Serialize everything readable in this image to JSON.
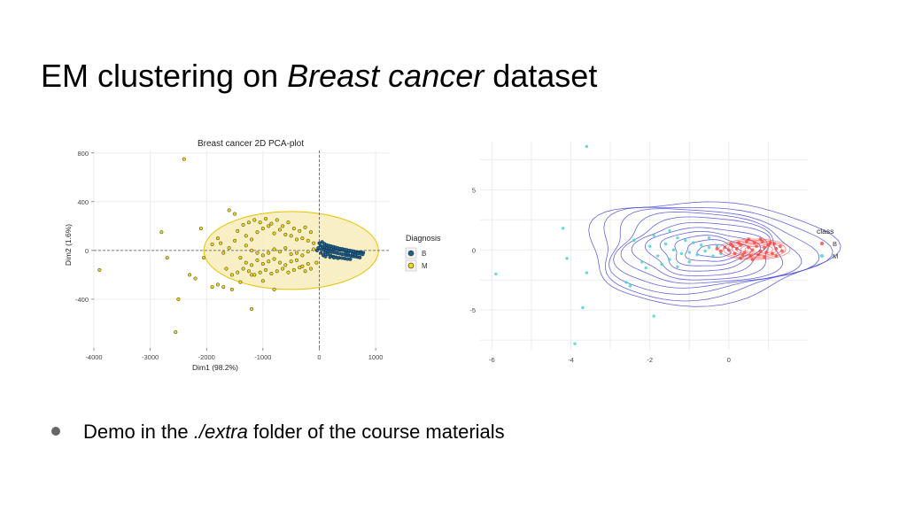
{
  "slide": {
    "title_part1": "EM clustering on ",
    "title_italic": "Breast cancer",
    "title_part2": " dataset",
    "bullet_part1": "Demo in the ",
    "bullet_italic": "./extra",
    "bullet_part2": " folder of the course materials"
  },
  "chart_data": [
    {
      "type": "scatter",
      "title": "Breast cancer 2D PCA-plot",
      "xlabel": "Dim1 (98.2%)",
      "ylabel": "Dim2 (1.6%)",
      "xlim": [
        -4000,
        1250
      ],
      "ylim": [
        -800,
        820
      ],
      "xticks": [
        -4000,
        -3000,
        -2000,
        -1000,
        0,
        1000
      ],
      "yticks": [
        800,
        400,
        0,
        -400
      ],
      "grid": true,
      "legend": {
        "title": "Diagnosis",
        "position": "right"
      },
      "colors": {
        "B": "#1f5f8b",
        "M": "#f2d600",
        "ellipse_fill": "#f7e9b0",
        "ellipse_stroke": "#e6c200"
      },
      "series": [
        {
          "name": "B",
          "points": [
            [
              20,
              40
            ],
            [
              60,
              30
            ],
            [
              100,
              25
            ],
            [
              140,
              20
            ],
            [
              180,
              18
            ],
            [
              220,
              14
            ],
            [
              260,
              12
            ],
            [
              300,
              10
            ],
            [
              340,
              6
            ],
            [
              380,
              4
            ],
            [
              420,
              2
            ],
            [
              460,
              -2
            ],
            [
              500,
              -4
            ],
            [
              540,
              -6
            ],
            [
              580,
              -8
            ],
            [
              620,
              -10
            ],
            [
              660,
              -12
            ],
            [
              700,
              -14
            ],
            [
              740,
              -16
            ],
            [
              780,
              -18
            ],
            [
              40,
              10
            ],
            [
              80,
              5
            ],
            [
              120,
              -2
            ],
            [
              160,
              -6
            ],
            [
              200,
              -10
            ],
            [
              240,
              -14
            ],
            [
              280,
              -18
            ],
            [
              320,
              -22
            ],
            [
              360,
              -26
            ],
            [
              400,
              -30
            ],
            [
              440,
              -34
            ],
            [
              480,
              -38
            ],
            [
              520,
              -40
            ],
            [
              560,
              -44
            ],
            [
              600,
              -48
            ],
            [
              640,
              -50
            ],
            [
              680,
              -54
            ],
            [
              720,
              -58
            ],
            [
              0,
              60
            ],
            [
              50,
              70
            ],
            [
              90,
              55
            ],
            [
              130,
              45
            ],
            [
              170,
              40
            ],
            [
              210,
              35
            ],
            [
              250,
              30
            ],
            [
              290,
              25
            ],
            [
              330,
              20
            ],
            [
              370,
              15
            ],
            [
              410,
              12
            ],
            [
              450,
              8
            ],
            [
              490,
              4
            ],
            [
              530,
              0
            ],
            [
              570,
              -3
            ],
            [
              610,
              -6
            ],
            [
              650,
              -20
            ],
            [
              690,
              -24
            ],
            [
              730,
              -28
            ],
            [
              770,
              -32
            ],
            [
              100,
              -20
            ],
            [
              150,
              -30
            ],
            [
              200,
              -40
            ],
            [
              250,
              -50
            ],
            [
              300,
              -55
            ],
            [
              350,
              -60
            ],
            [
              400,
              -62
            ],
            [
              450,
              -66
            ],
            [
              500,
              -70
            ],
            [
              550,
              -72
            ],
            [
              -20,
              20
            ],
            [
              -40,
              0
            ],
            [
              30,
              -20
            ],
            [
              70,
              -40
            ],
            [
              110,
              -50
            ],
            [
              190,
              -55
            ],
            [
              260,
              -60
            ],
            [
              330,
              -64
            ],
            [
              470,
              -20
            ],
            [
              510,
              -25
            ],
            [
              590,
              -30
            ],
            [
              640,
              -35
            ]
          ]
        },
        {
          "name": "M",
          "points": [
            [
              -2400,
              750
            ],
            [
              -1600,
              330
            ],
            [
              -1500,
              300
            ],
            [
              -2800,
              150
            ],
            [
              -2700,
              -60
            ],
            [
              -2100,
              180
            ],
            [
              -2050,
              -60
            ],
            [
              -2300,
              -200
            ],
            [
              -2200,
              -230
            ],
            [
              -1900,
              -300
            ],
            [
              -1800,
              -280
            ],
            [
              -1700,
              -300
            ],
            [
              -1550,
              -320
            ],
            [
              -1400,
              -260
            ],
            [
              -1200,
              -200
            ],
            [
              -1000,
              -250
            ],
            [
              -800,
              -320
            ],
            [
              -2500,
              -400
            ],
            [
              -2550,
              -670
            ],
            [
              -1200,
              -480
            ],
            [
              -3900,
              -160
            ],
            [
              -1300,
              120
            ],
            [
              -1200,
              90
            ],
            [
              -1100,
              150
            ],
            [
              -1000,
              180
            ],
            [
              -900,
              200
            ],
            [
              -800,
              140
            ],
            [
              -700,
              170
            ],
            [
              -600,
              130
            ],
            [
              -500,
              120
            ],
            [
              -400,
              90
            ],
            [
              -300,
              100
            ],
            [
              -200,
              80
            ],
            [
              -100,
              60
            ],
            [
              -1300,
              40
            ],
            [
              -1200,
              0
            ],
            [
              -1100,
              -20
            ],
            [
              -1000,
              -40
            ],
            [
              -900,
              -20
            ],
            [
              -800,
              10
            ],
            [
              -700,
              -10
            ],
            [
              -600,
              20
            ],
            [
              -500,
              -30
            ],
            [
              -400,
              -20
            ],
            [
              -300,
              -40
            ],
            [
              -200,
              -10
            ],
            [
              -100,
              10
            ],
            [
              -1400,
              -60
            ],
            [
              -1300,
              -100
            ],
            [
              -1200,
              -120
            ],
            [
              -1100,
              -80
            ],
            [
              -1000,
              -110
            ],
            [
              -900,
              -90
            ],
            [
              -800,
              -70
            ],
            [
              -700,
              -100
            ],
            [
              -600,
              -120
            ],
            [
              -500,
              -90
            ],
            [
              -400,
              -80
            ],
            [
              -300,
              -130
            ],
            [
              -200,
              -110
            ],
            [
              -1500,
              80
            ],
            [
              -1600,
              20
            ],
            [
              -1700,
              -20
            ],
            [
              -1750,
              60
            ],
            [
              -1450,
              160
            ],
            [
              -1350,
              210
            ],
            [
              -1250,
              230
            ],
            [
              -1150,
              250
            ],
            [
              -1050,
              230
            ],
            [
              -950,
              260
            ],
            [
              -850,
              220
            ],
            [
              -750,
              250
            ],
            [
              -650,
              200
            ],
            [
              -550,
              230
            ],
            [
              -450,
              180
            ],
            [
              -350,
              160
            ],
            [
              -250,
              190
            ],
            [
              -150,
              150
            ],
            [
              -1800,
              100
            ],
            [
              -1900,
              50
            ],
            [
              -1650,
              -150
            ],
            [
              -1550,
              -200
            ],
            [
              -1450,
              -180
            ],
            [
              -1350,
              -150
            ],
            [
              -1250,
              -170
            ],
            [
              -1150,
              -200
            ],
            [
              -1050,
              -180
            ],
            [
              -950,
              -160
            ],
            [
              -850,
              -190
            ],
            [
              -750,
              -170
            ],
            [
              -650,
              -150
            ],
            [
              -550,
              -180
            ],
            [
              -450,
              -160
            ],
            [
              -350,
              -140
            ],
            [
              -250,
              -170
            ],
            [
              -150,
              -150
            ],
            [
              -50,
              -100
            ]
          ]
        }
      ]
    },
    {
      "type": "scatter",
      "xlim": [
        -6.3,
        2.0
      ],
      "ylim": [
        -8.3,
        9.0
      ],
      "xticks": [
        -6,
        -4,
        -2,
        0
      ],
      "yticks": [
        5,
        0,
        -5
      ],
      "grid": true,
      "legend": {
        "title": "class",
        "position": "right"
      },
      "colors": {
        "B": "#ff3b30",
        "M": "#3fd1d1",
        "contour": "#4a4ad6"
      },
      "series": [
        {
          "name": "B",
          "points": [
            [
              0.1,
              0.3
            ],
            [
              0.2,
              0.1
            ],
            [
              0.3,
              0.4
            ],
            [
              0.4,
              -0.2
            ],
            [
              0.5,
              0.2
            ],
            [
              0.6,
              0.0
            ],
            [
              0.7,
              0.3
            ],
            [
              0.8,
              -0.1
            ],
            [
              0.9,
              0.2
            ],
            [
              1.0,
              0.4
            ],
            [
              1.1,
              -0.3
            ],
            [
              1.2,
              0.1
            ],
            [
              1.3,
              0.3
            ],
            [
              0.15,
              -0.3
            ],
            [
              0.35,
              -0.4
            ],
            [
              0.55,
              -0.5
            ],
            [
              0.75,
              -0.4
            ],
            [
              0.95,
              -0.2
            ],
            [
              1.15,
              0.5
            ],
            [
              0.25,
              0.6
            ],
            [
              0.45,
              0.7
            ],
            [
              0.65,
              0.6
            ],
            [
              0.85,
              0.7
            ],
            [
              1.05,
              0.6
            ],
            [
              0.0,
              0.0
            ],
            [
              -0.1,
              0.2
            ],
            [
              -0.2,
              -0.1
            ],
            [
              -0.3,
              0.1
            ],
            [
              0.3,
              -0.7
            ],
            [
              0.6,
              -0.8
            ],
            [
              0.9,
              -0.6
            ],
            [
              1.2,
              -0.5
            ],
            [
              1.35,
              -0.1
            ],
            [
              0.05,
              0.5
            ],
            [
              0.5,
              0.9
            ],
            [
              0.8,
              0.9
            ]
          ]
        },
        {
          "name": "M",
          "points": [
            [
              -3.6,
              8.6
            ],
            [
              -4.2,
              1.8
            ],
            [
              -4.1,
              -0.7
            ],
            [
              -5.9,
              -2.0
            ],
            [
              -3.6,
              -1.9
            ],
            [
              -3.7,
              -4.8
            ],
            [
              -3.9,
              -7.8
            ],
            [
              -2.5,
              -3.0
            ],
            [
              -1.9,
              -5.5
            ],
            [
              -2.6,
              -2.7
            ],
            [
              -1.5,
              1.6
            ],
            [
              -1.3,
              1.0
            ],
            [
              -1.1,
              0.8
            ],
            [
              -0.9,
              0.6
            ],
            [
              -0.7,
              0.4
            ],
            [
              -0.5,
              0.2
            ],
            [
              -1.6,
              0.5
            ],
            [
              -1.4,
              0.0
            ],
            [
              -1.2,
              -0.3
            ],
            [
              -1.0,
              -0.2
            ],
            [
              -0.8,
              -0.4
            ],
            [
              -0.6,
              -0.1
            ],
            [
              -0.4,
              -0.5
            ],
            [
              -2.0,
              0.3
            ],
            [
              -1.8,
              -0.5
            ],
            [
              -2.2,
              -1.0
            ],
            [
              -1.7,
              -1.2
            ],
            [
              -1.5,
              -0.8
            ],
            [
              -1.0,
              -1.0
            ],
            [
              -0.3,
              0.3
            ],
            [
              -0.2,
              -0.3
            ],
            [
              -1.9,
              1.2
            ],
            [
              -2.4,
              0.8
            ],
            [
              -2.1,
              -1.5
            ],
            [
              -0.5,
              1.0
            ],
            [
              -1.3,
              -1.4
            ]
          ]
        }
      ]
    }
  ]
}
